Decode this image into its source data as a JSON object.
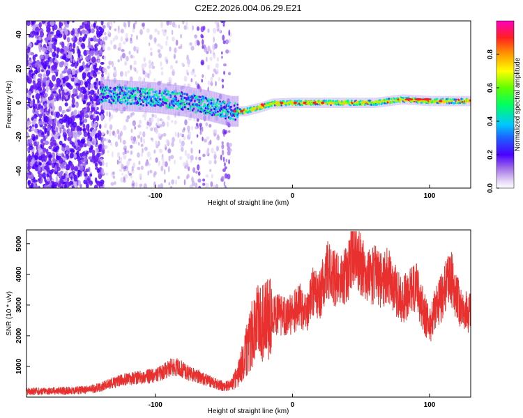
{
  "figure_title": "C2E2.2026.004.06.29.E21",
  "chart_data": [
    {
      "type": "heatmap",
      "title": "C2E2.2026.004.06.29.E21",
      "xlabel": "Height of straight line (km)",
      "ylabel": "Frequency (Hz)",
      "xlim": [
        -194,
        130
      ],
      "ylim": [
        -50,
        48
      ],
      "x_ticks": [
        -100,
        0,
        100
      ],
      "y_ticks": [
        -40,
        -20,
        0,
        20,
        40
      ],
      "colorbar": {
        "label": "Normalized spectral amplitude",
        "range": [
          0,
          1
        ],
        "ticks": [
          "0.0",
          "0.2",
          "0.4",
          "0.6",
          "0.8"
        ],
        "tick_values": [
          0,
          0.2,
          0.4,
          0.6,
          0.8
        ],
        "colormap": "rainbow"
      },
      "ridge": {
        "description_points_x": [
          -194,
          -140,
          -120,
          -100,
          -80,
          -60,
          -45,
          -35,
          -25,
          -15,
          0,
          20,
          40,
          60,
          80,
          100,
          130
        ],
        "frequency_y": [
          4,
          5,
          4,
          3,
          1,
          -2,
          -5,
          -5,
          -3,
          -0.5,
          0,
          0,
          0,
          0,
          2,
          1,
          1
        ]
      },
      "grid": false
    },
    {
      "type": "line",
      "xlabel": "Height of straight line (km)",
      "ylabel": "SNR (10 * v/v)",
      "xlim": [
        -194,
        130
      ],
      "ylim": [
        0,
        5450
      ],
      "x_ticks": [
        -100,
        0,
        100
      ],
      "y_ticks": [
        1000,
        2000,
        3000,
        4000,
        5000
      ],
      "line_color": "#e8302e",
      "series": [
        {
          "name": "SNR",
          "x": [
            -194,
            -175,
            -160,
            -150,
            -140,
            -130,
            -120,
            -110,
            -100,
            -95,
            -90,
            -85,
            -80,
            -75,
            -70,
            -65,
            -60,
            -55,
            -50,
            -45,
            -40,
            -35,
            -30,
            -25,
            -20,
            -15,
            -10,
            -5,
            0,
            5,
            10,
            15,
            20,
            25,
            30,
            35,
            40,
            45,
            50,
            55,
            60,
            65,
            70,
            75,
            80,
            85,
            90,
            95,
            100,
            105,
            110,
            115,
            120,
            125,
            130
          ],
          "y": [
            180,
            200,
            210,
            240,
            320,
            480,
            600,
            650,
            700,
            800,
            950,
            1000,
            900,
            750,
            700,
            600,
            500,
            420,
            350,
            400,
            700,
            1300,
            2000,
            2500,
            2400,
            2600,
            2700,
            2600,
            2700,
            3000,
            2700,
            3400,
            3300,
            4200,
            3900,
            3700,
            4000,
            4900,
            4300,
            3900,
            4000,
            3800,
            4000,
            3500,
            3100,
            3400,
            3600,
            2900,
            2300,
            3000,
            3300,
            4000,
            3200,
            2800,
            2700
          ]
        }
      ],
      "grid": false
    }
  ]
}
